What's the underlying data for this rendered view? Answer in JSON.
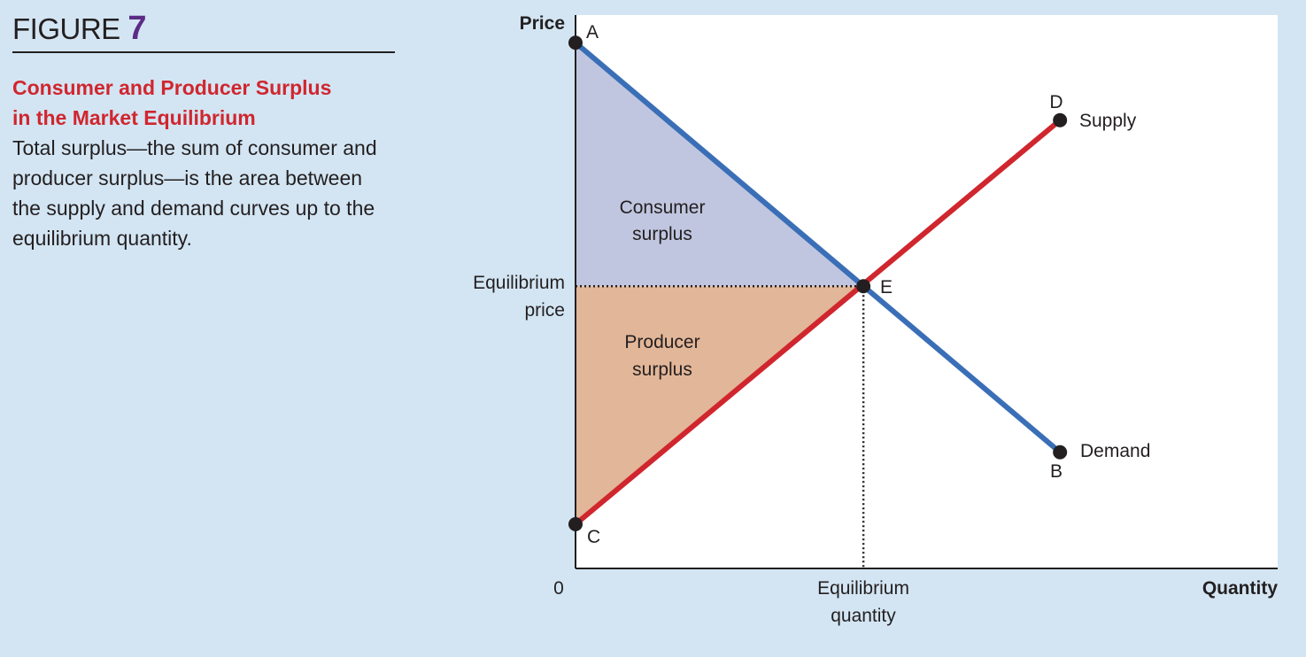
{
  "figure": {
    "label": "FIGURE",
    "number": "7",
    "title_line1": "Consumer and Producer Surplus",
    "title_line2": "in the Market Equilibrium",
    "description": "Total surplus—the sum of consumer and producer surplus—is the area between the supply and demand curves up to the equilibrium quantity."
  },
  "chart_data": {
    "type": "line",
    "title": "Consumer and Producer Surplus in the Market Equilibrium",
    "xlabel": "Quantity",
    "ylabel": "Price",
    "origin_label": "0",
    "xlim": [
      0,
      100
    ],
    "ylim": [
      0,
      100
    ],
    "grid": false,
    "series": [
      {
        "name": "Demand",
        "color": "#3a6fb7",
        "points": [
          {
            "label": "A",
            "x": 0,
            "y": 95
          },
          {
            "label": "B",
            "x": 69,
            "y": 21
          }
        ]
      },
      {
        "name": "Supply",
        "color": "#d0262e",
        "points": [
          {
            "label": "C",
            "x": 0,
            "y": 8
          },
          {
            "label": "D",
            "x": 69,
            "y": 81
          }
        ]
      }
    ],
    "equilibrium": {
      "label": "E",
      "x": 41,
      "y": 51,
      "price_label_line1": "Equilibrium",
      "price_label_line2": "price",
      "quantity_label_line1": "Equilibrium",
      "quantity_label_line2": "quantity"
    },
    "areas": [
      {
        "name": "Consumer surplus",
        "line1": "Consumer",
        "line2": "surplus",
        "color": "#c0c6df"
      },
      {
        "name": "Producer surplus",
        "line1": "Producer",
        "line2": "surplus",
        "color": "#e2b698"
      }
    ]
  }
}
